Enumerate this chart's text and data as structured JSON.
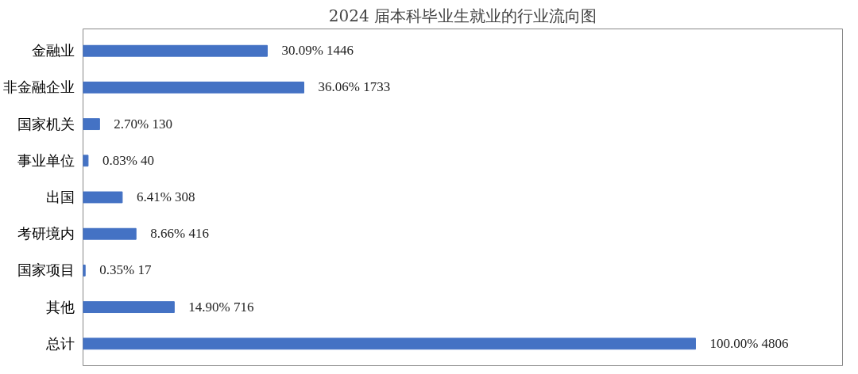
{
  "chart_data": {
    "type": "bar",
    "orientation": "horizontal",
    "title": "2024 届本科毕业生就业的行业流向图",
    "categories": [
      "金融业",
      "非金融企业",
      "国家机关",
      "事业单位",
      "出国",
      "考研境内",
      "国家项目",
      "其他",
      "总计"
    ],
    "values": [
      1446,
      1733,
      130,
      40,
      308,
      416,
      17,
      716,
      4806
    ],
    "value_labels": [
      "30.09% 1446",
      "36.06% 1733",
      "2.70% 130",
      "0.83% 40",
      "6.41% 308",
      "8.66% 416",
      "0.35% 17",
      "14.90% 716",
      "100.00% 4806"
    ],
    "color": "#4472c4"
  }
}
